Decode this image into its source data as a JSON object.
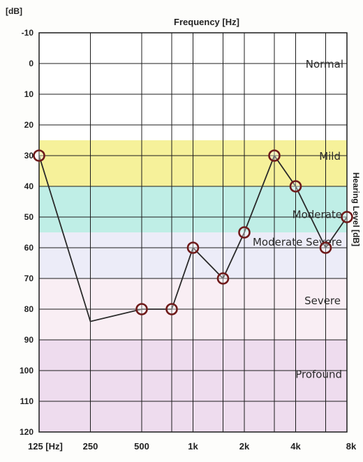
{
  "chart_data": {
    "type": "line",
    "xlabel": "Frequency [Hz]",
    "ylabel": "Hearing Level [dB]",
    "y_unit": "[dB]",
    "ylim": [
      -10,
      120
    ],
    "y_ticks": [
      "-10",
      "0",
      "10",
      "20",
      "30",
      "40",
      "50",
      "60",
      "70",
      "80",
      "90",
      "100",
      "110",
      "120"
    ],
    "x_ticks": [
      "125 [Hz]",
      "250",
      "500",
      "1k",
      "2k",
      "4k",
      "8k"
    ],
    "x_tick_hz": [
      125,
      250,
      500,
      1000,
      2000,
      4000,
      8000
    ],
    "hz_range": [
      125,
      8000
    ],
    "grid": true,
    "zones": [
      {
        "label": "Normal",
        "from": -10,
        "to": 25,
        "color": "#ffffff"
      },
      {
        "label": "Mild",
        "from": 25,
        "to": 40,
        "color": "#f6f19a"
      },
      {
        "label": "Moderate",
        "from": 40,
        "to": 55,
        "color": "#bfeee6"
      },
      {
        "label": "Moderate Severe",
        "from": 55,
        "to": 70,
        "color": "#ececf8"
      },
      {
        "label": "Severe",
        "from": 70,
        "to": 90,
        "color": "#f9eef4"
      },
      {
        "label": "Profound",
        "from": 90,
        "to": 120,
        "color": "#eedcee"
      }
    ],
    "series": [
      {
        "points": [
          {
            "x": 125,
            "y": 30
          },
          {
            "x": 250,
            "y": 84
          },
          {
            "x": 500,
            "y": 80
          },
          {
            "x": 750,
            "y": 80
          },
          {
            "x": 1000,
            "y": 60
          },
          {
            "x": 1500,
            "y": 70
          },
          {
            "x": 2000,
            "y": 55
          },
          {
            "x": 3000,
            "y": 30
          },
          {
            "x": 4000,
            "y": 40
          },
          {
            "x": 6000,
            "y": 60
          },
          {
            "x": 8000,
            "y": 50
          }
        ],
        "marked": [
          true,
          false,
          true,
          true,
          true,
          true,
          true,
          true,
          true,
          true,
          true
        ]
      }
    ],
    "marker": "circle",
    "line_color": "#2a2a2a",
    "marker_color": "#6e1a1a"
  }
}
